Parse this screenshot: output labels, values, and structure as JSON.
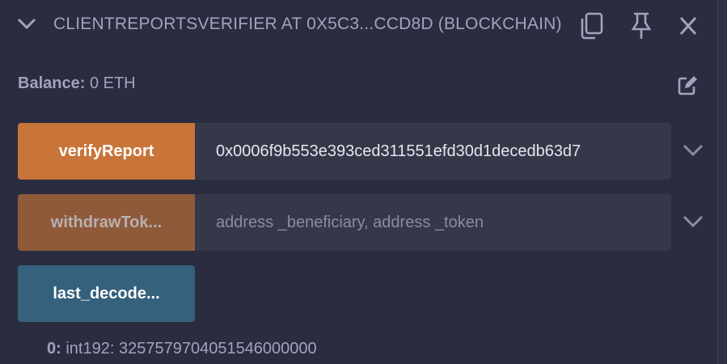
{
  "header": {
    "title": "CLIENTREPORTSVERIFIER AT 0X5C3...CCD8D (BLOCKCHAIN)",
    "icons": [
      "chevron-down-icon",
      "copy-icon",
      "pin-icon",
      "close-icon"
    ]
  },
  "balance": {
    "label": "Balance:",
    "value": "0 ETH"
  },
  "functions": [
    {
      "label": "verifyReport",
      "value": "0x0006f9b553e393ced311551efd30d1decedb63d7",
      "placeholder": "",
      "color": "#c97539"
    },
    {
      "label": "withdrawTok...",
      "value": "",
      "placeholder": "address _beneficiary, address _token",
      "color": "#8f5a3a"
    },
    {
      "label": "last_decode...",
      "color": "#35617c"
    }
  ],
  "output": {
    "index": "0:",
    "value": "int192: 3257579704051546000000"
  }
}
